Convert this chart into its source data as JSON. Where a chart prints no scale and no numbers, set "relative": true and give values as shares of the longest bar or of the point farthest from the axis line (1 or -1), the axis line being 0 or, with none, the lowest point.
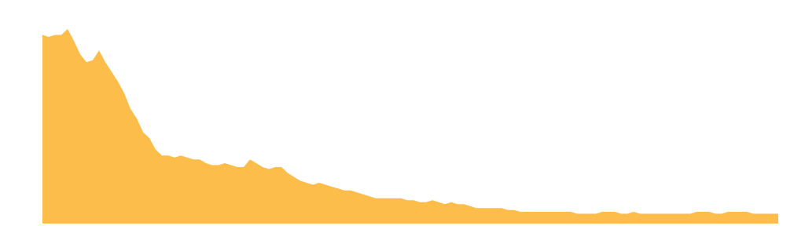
{
  "chart_data": {
    "type": "area",
    "relative": true,
    "color": "#fdbd4b",
    "categories": [
      null,
      null,
      null,
      null,
      null,
      null,
      null,
      null,
      null,
      null,
      null,
      null,
      null,
      null,
      null,
      null,
      null,
      null,
      null,
      null,
      null,
      null,
      null,
      null,
      null,
      null,
      null,
      null,
      null,
      null,
      null,
      null,
      null,
      null,
      null,
      null,
      null,
      null,
      null,
      null,
      null,
      null,
      null,
      null,
      null,
      null,
      null,
      null,
      null,
      null,
      null,
      null,
      null,
      null,
      null,
      null,
      null,
      null,
      null,
      null,
      null,
      null,
      null,
      null,
      null,
      null,
      null,
      null,
      null,
      null,
      null,
      null,
      null,
      null,
      null,
      null,
      null,
      null,
      null,
      null,
      null,
      null,
      null,
      null,
      null,
      null,
      null,
      null,
      null,
      null,
      null,
      null,
      null,
      null,
      null,
      null,
      null,
      null,
      null,
      null,
      null,
      null,
      null,
      null,
      null,
      null,
      null,
      null,
      null,
      null,
      null,
      null,
      null,
      null,
      null,
      null,
      null,
      null
    ],
    "values": [
      0.97,
      0.96,
      0.97,
      0.97,
      1.0,
      0.94,
      0.87,
      0.83,
      0.84,
      0.89,
      0.83,
      0.78,
      0.73,
      0.67,
      0.59,
      0.54,
      0.47,
      0.44,
      0.38,
      0.35,
      0.35,
      0.34,
      0.35,
      0.34,
      0.33,
      0.33,
      0.31,
      0.3,
      0.3,
      0.31,
      0.3,
      0.29,
      0.29,
      0.33,
      0.31,
      0.29,
      0.28,
      0.29,
      0.29,
      0.26,
      0.24,
      0.22,
      0.21,
      0.2,
      0.21,
      0.2,
      0.19,
      0.18,
      0.17,
      0.17,
      0.16,
      0.15,
      0.14,
      0.13,
      0.13,
      0.13,
      0.13,
      0.13,
      0.12,
      0.12,
      0.11,
      0.11,
      0.12,
      0.11,
      0.1,
      0.11,
      0.1,
      0.1,
      0.09,
      0.08,
      0.08,
      0.08,
      0.08,
      0.08,
      0.07,
      0.07,
      0.06,
      0.06,
      0.06,
      0.06,
      0.06,
      0.06,
      0.06,
      0.06,
      0.06,
      0.05,
      0.05,
      0.05,
      0.05,
      0.06,
      0.06,
      0.06,
      0.05,
      0.05,
      0.06,
      0.05,
      0.05,
      0.05,
      0.05,
      0.05,
      0.05,
      0.05,
      0.05,
      0.05,
      0.06,
      0.06,
      0.06,
      0.05,
      0.05,
      0.06,
      0.06,
      0.06,
      0.06,
      0.05,
      0.05,
      0.05,
      0.05,
      0.05
    ]
  }
}
